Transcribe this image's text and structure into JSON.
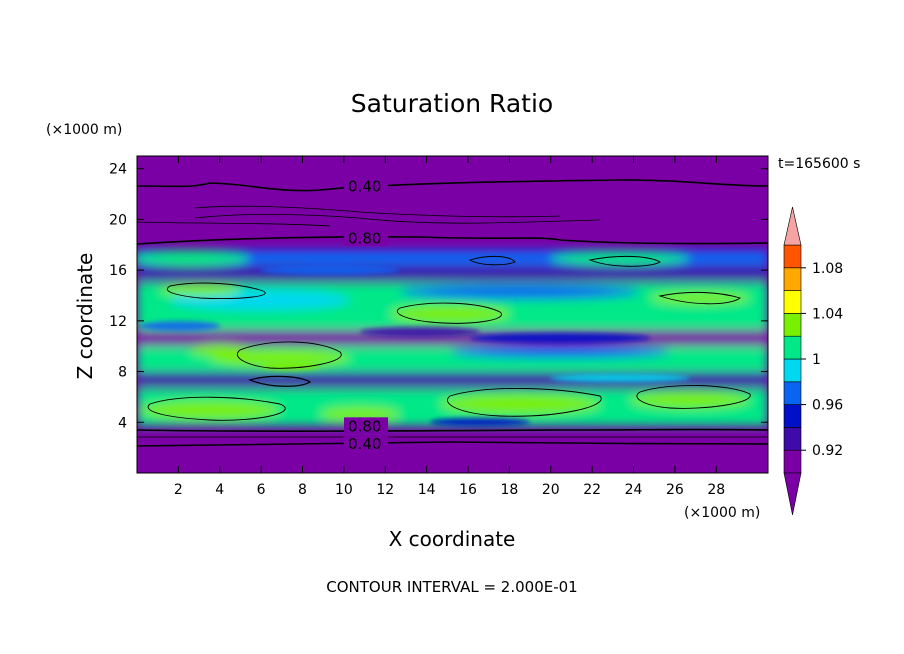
{
  "chart_data": {
    "type": "heatmap",
    "title": "Saturation Ratio",
    "xlabel": "X coordinate",
    "ylabel": "Z coordinate",
    "x_unit": "(×1000 m)",
    "y_unit": "(×1000 m)",
    "time_label": "t=165600 s",
    "footer": "CONTOUR INTERVAL = 2.000E-01",
    "xlim": [
      0,
      30.5
    ],
    "ylim": [
      0,
      25
    ],
    "x_ticks": [
      2,
      4,
      6,
      8,
      10,
      12,
      14,
      16,
      18,
      20,
      22,
      24,
      26,
      28
    ],
    "y_ticks": [
      4,
      8,
      12,
      16,
      20,
      24
    ],
    "colorbar": {
      "levels": [
        0.9,
        0.92,
        0.94,
        0.96,
        0.98,
        1.0,
        1.02,
        1.04,
        1.06,
        1.08,
        1.1
      ],
      "labels": [
        "1.08",
        "1.04",
        "1",
        "0.96",
        "0.92"
      ],
      "label_values": [
        1.08,
        1.04,
        1.0,
        0.96,
        0.92
      ],
      "colors": [
        "#7a00a6",
        "#3e0aa8",
        "#0010c8",
        "#0a64f0",
        "#00d8f0",
        "#00e888",
        "#78f000",
        "#ffff00",
        "#ffa800",
        "#ff5400",
        "#ff1818"
      ],
      "over_color": "#f5a3a3",
      "under_color": "#7a00a6"
    },
    "contour_labels": [
      {
        "text": "0.40",
        "x": 10.2,
        "y": 22.5
      },
      {
        "text": "0.80",
        "x": 10.2,
        "y": 18.4
      },
      {
        "text": "0.80",
        "x": 10.2,
        "y": 3.6
      },
      {
        "text": "0.40",
        "x": 10.2,
        "y": 2.2
      }
    ]
  }
}
